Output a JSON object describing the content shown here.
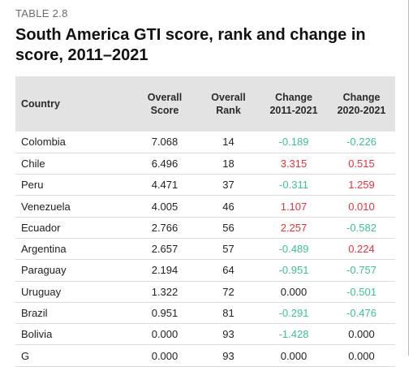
{
  "label": "TABLE 2.8",
  "title": "South America GTI score, rank and change in score, 2011–2021",
  "columns": [
    "Country",
    "Overall Score",
    "Overall Rank",
    "Change 2011-2021",
    "Change 2020-2021"
  ],
  "colors": {
    "negative_change": "#3cc199",
    "positive_change": "#e8323c",
    "zero_change": "#222222",
    "header_bg": "#e3e3e3"
  },
  "rows": [
    {
      "country": "Colombia",
      "score": "7.068",
      "rank": "14",
      "change_2011_2021": "-0.189",
      "change_2020_2021": "-0.226"
    },
    {
      "country": "Chile",
      "score": "6.496",
      "rank": "18",
      "change_2011_2021": "3.315",
      "change_2020_2021": "0.515"
    },
    {
      "country": "Peru",
      "score": "4.471",
      "rank": "37",
      "change_2011_2021": "-0.311",
      "change_2020_2021": "1.259"
    },
    {
      "country": "Venezuela",
      "score": "4.005",
      "rank": "46",
      "change_2011_2021": "1.107",
      "change_2020_2021": "0.010"
    },
    {
      "country": "Ecuador",
      "score": "2.766",
      "rank": "56",
      "change_2011_2021": "2.257",
      "change_2020_2021": "-0.582"
    },
    {
      "country": "Argentina",
      "score": "2.657",
      "rank": "57",
      "change_2011_2021": "-0.489",
      "change_2020_2021": "0.224"
    },
    {
      "country": "Paraguay",
      "score": "2.194",
      "rank": "64",
      "change_2011_2021": "-0.951",
      "change_2020_2021": "-0.757"
    },
    {
      "country": "Uruguay",
      "score": "1.322",
      "rank": "72",
      "change_2011_2021": "0.000",
      "change_2020_2021": "-0.501"
    },
    {
      "country": "Brazil",
      "score": "0.951",
      "rank": "81",
      "change_2011_2021": "-0.291",
      "change_2020_2021": "-0.476"
    },
    {
      "country": "Bolivia",
      "score": "0.000",
      "rank": "93",
      "change_2011_2021": "-1.428",
      "change_2020_2021": "0.000"
    },
    {
      "country": "G",
      "score": "0.000",
      "rank": "93",
      "change_2011_2021": "0.000",
      "change_2020_2021": "0.000"
    }
  ]
}
